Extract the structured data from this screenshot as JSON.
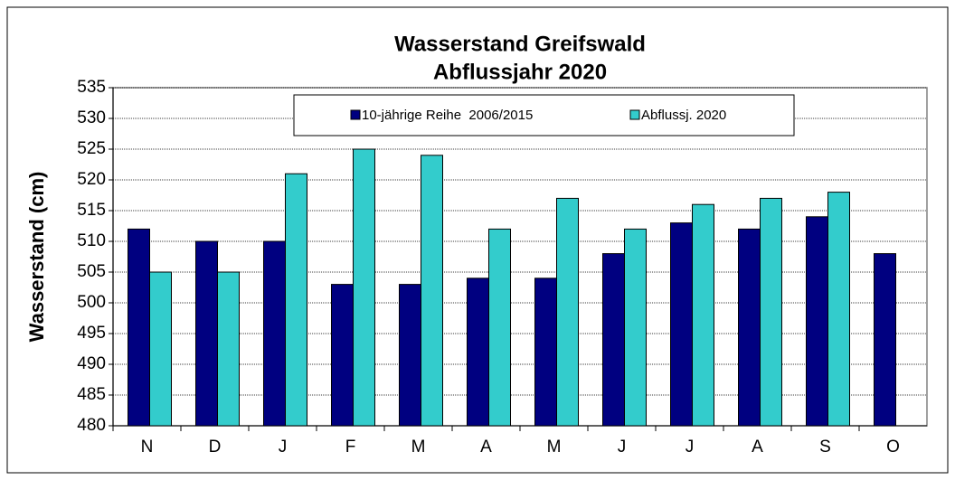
{
  "chart_data": {
    "type": "bar",
    "title": "Wasserstand Greifswald",
    "subtitle": "Abflussjahr 2020",
    "y_label": "Wasserstand (cm)",
    "categories": [
      "N",
      "D",
      "J",
      "F",
      "M",
      "A",
      "M",
      "J",
      "J",
      "A",
      "S",
      "O"
    ],
    "series": [
      {
        "name": "10-jährige Reihe  2006/2015",
        "color": "#000080",
        "values": [
          512,
          510,
          510,
          503,
          503,
          504,
          504,
          508,
          513,
          512,
          514,
          508
        ]
      },
      {
        "name": "Abflussj. 2020",
        "color": "#33cccc",
        "values": [
          505,
          505,
          521,
          525,
          524,
          512,
          517,
          512,
          516,
          517,
          518,
          null
        ]
      }
    ],
    "ylim": [
      480,
      535
    ],
    "yticks": [
      480,
      485,
      490,
      495,
      500,
      505,
      510,
      515,
      520,
      525,
      530,
      535
    ],
    "grid": true
  }
}
